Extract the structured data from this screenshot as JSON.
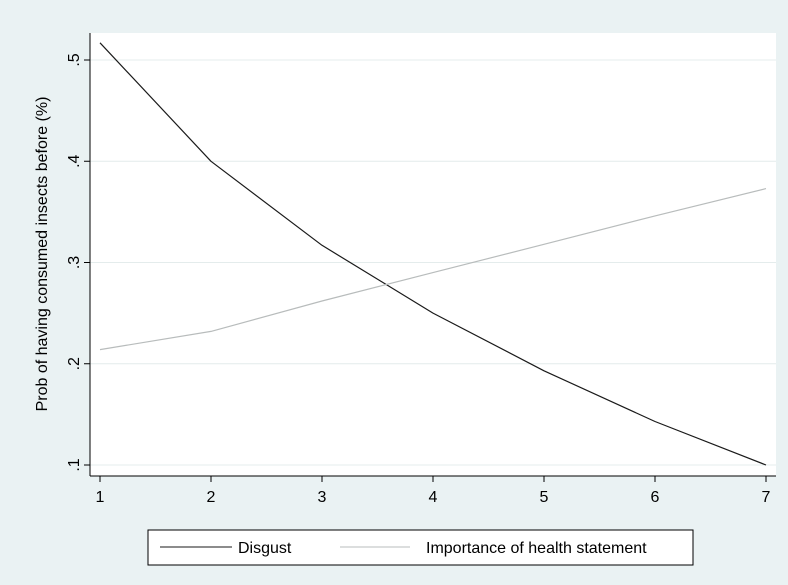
{
  "chart_data": {
    "type": "line",
    "title": "",
    "xlabel": "",
    "ylabel": "Prob of having consumed insects before (%)",
    "x": [
      1,
      2,
      3,
      4,
      5,
      6,
      7
    ],
    "xticks": [
      "1",
      "2",
      "3",
      "4",
      "5",
      "6",
      "7"
    ],
    "yticks": [
      ".1",
      ".2",
      ".3",
      ".4",
      ".5"
    ],
    "yticks_values": [
      0.1,
      0.2,
      0.3,
      0.4,
      0.5
    ],
    "xlim": [
      1,
      7
    ],
    "ylim": [
      0.1,
      0.52
    ],
    "grid": true,
    "legend_position": "bottom",
    "series": [
      {
        "name": "Disgust",
        "values": [
          0.517,
          0.4,
          0.317,
          0.25,
          0.193,
          0.143,
          0.1
        ],
        "color": "#1a1a1a"
      },
      {
        "name": "Importance of health statement",
        "values": [
          0.214,
          0.232,
          0.262,
          0.29,
          0.318,
          0.346,
          0.373
        ],
        "color": "#b8bcbc"
      }
    ]
  },
  "colors": {
    "page_background": "#eaf2f3",
    "plot_background": "#ffffff",
    "gridline": "#e4ecec"
  }
}
